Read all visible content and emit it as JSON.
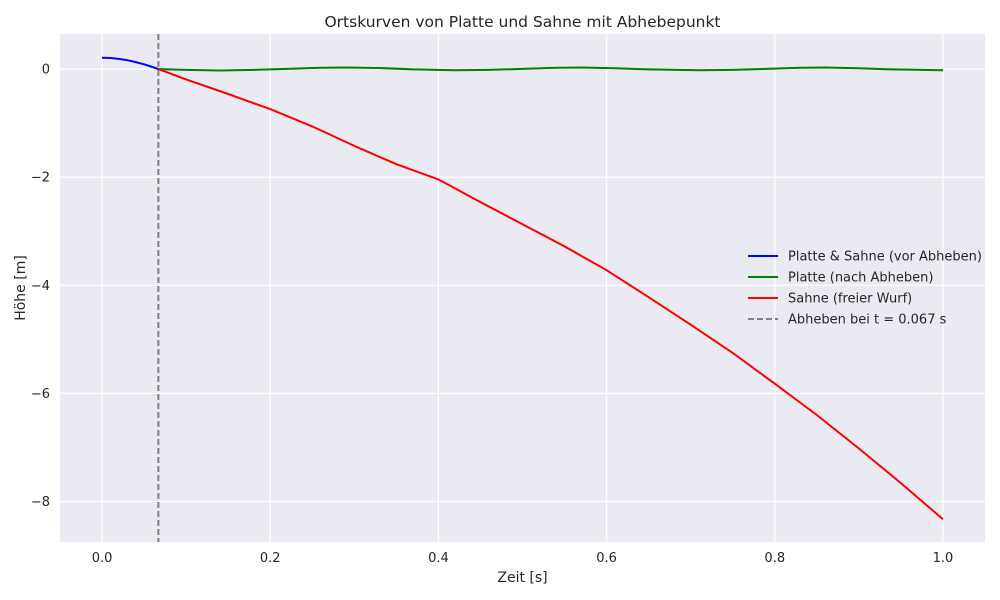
{
  "chart_data": {
    "type": "line",
    "title": "Ortskurven von Platte und Sahne mit Abhebepunkt",
    "xlabel": "Zeit [s]",
    "ylabel": "Höhe [m]",
    "xlim": [
      -0.05,
      1.05
    ],
    "ylim": [
      -8.75,
      0.65
    ],
    "xticks": [
      0.0,
      0.2,
      0.4,
      0.6,
      0.8,
      1.0
    ],
    "xtick_labels": [
      "0.0",
      "0.2",
      "0.4",
      "0.6",
      "0.8",
      "1.0"
    ],
    "yticks": [
      0,
      -2,
      -4,
      -6,
      -8
    ],
    "ytick_labels": [
      "0",
      "−2",
      "−4",
      "−6",
      "−8"
    ],
    "grid": true,
    "legend_position": "center-right",
    "series": [
      {
        "name": "Platte & Sahne (vor Abheben)",
        "color": "#0000ff",
        "style": "solid",
        "x": [
          0.0,
          0.01,
          0.02,
          0.03,
          0.04,
          0.05,
          0.06,
          0.067
        ],
        "y": [
          0.21,
          0.205,
          0.19,
          0.165,
          0.13,
          0.09,
          0.04,
          0.0
        ]
      },
      {
        "name": "Platte (nach Abheben)",
        "color": "#008000",
        "style": "solid",
        "x": [
          0.067,
          0.1,
          0.14,
          0.18,
          0.22,
          0.26,
          0.29,
          0.33,
          0.37,
          0.42,
          0.46,
          0.5,
          0.54,
          0.57,
          0.61,
          0.65,
          0.71,
          0.75,
          0.79,
          0.83,
          0.86,
          0.9,
          0.94,
          1.0
        ],
        "y": [
          0.0,
          -0.015,
          -0.025,
          -0.015,
          0.005,
          0.025,
          0.03,
          0.02,
          -0.005,
          -0.02,
          -0.015,
          0.005,
          0.025,
          0.03,
          0.015,
          -0.005,
          -0.02,
          -0.015,
          0.005,
          0.025,
          0.03,
          0.015,
          -0.005,
          -0.02
        ]
      },
      {
        "name": "Sahne (freier Wurf)",
        "color": "#ff0000",
        "style": "solid",
        "x": [
          0.067,
          0.1,
          0.15,
          0.2,
          0.25,
          0.3,
          0.35,
          0.4,
          0.45,
          0.5,
          0.55,
          0.6,
          0.65,
          0.7,
          0.75,
          0.8,
          0.85,
          0.9,
          0.95,
          1.0
        ],
        "y": [
          0.0,
          -0.19,
          -0.46,
          -0.74,
          -1.06,
          -1.42,
          -1.76,
          -2.04,
          -2.46,
          -2.87,
          -3.28,
          -3.72,
          -4.22,
          -4.73,
          -5.25,
          -5.82,
          -6.4,
          -7.02,
          -7.66,
          -8.33
        ]
      }
    ],
    "annotations": [
      {
        "name": "Abheben bei t = 0.067 s",
        "type": "vline",
        "x": 0.067,
        "color": "#808080",
        "style": "dashed"
      }
    ],
    "colors": {
      "plot_background": "#eaeaf2",
      "grid": "#ffffff",
      "text": "#262626"
    }
  }
}
